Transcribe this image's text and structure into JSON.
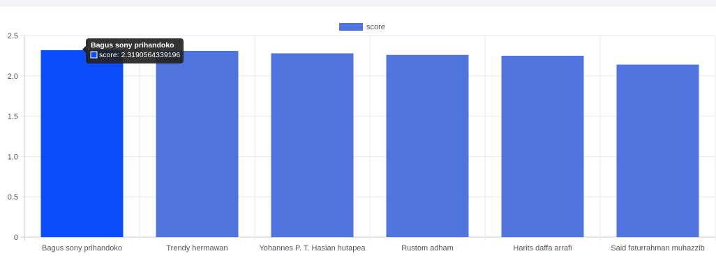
{
  "chart_data": {
    "type": "bar",
    "categories": [
      "Bagus sony prihandoko",
      "Trendy hermawan",
      "Yohannes P. T. Hasian hutapea",
      "Rustom adham",
      "Harits daffa arrafi",
      "Said faturrahman muhazzib"
    ],
    "series": [
      {
        "name": "score",
        "values": [
          2.3190564339196,
          2.31,
          2.28,
          2.26,
          2.25,
          2.14
        ]
      }
    ],
    "ylim": [
      0,
      2.5
    ],
    "yticks": [
      "0",
      "0.5",
      "1.0",
      "1.5",
      "2.0",
      "2.5"
    ],
    "grid": true,
    "legend_position": "top-center",
    "highlighted_index": 0,
    "tooltip": {
      "title": "Bagus sony prihandoko",
      "text": "score: 2.3190564339196"
    }
  },
  "colors": {
    "bar": "#4f74dd",
    "bar_highlight": "#0b4cfb",
    "grid": "#e8e8e8",
    "axis": "#c9c9c9",
    "tick_text": "#555555",
    "tooltip_bg": "#222222",
    "tooltip_text": "#ffffff"
  }
}
